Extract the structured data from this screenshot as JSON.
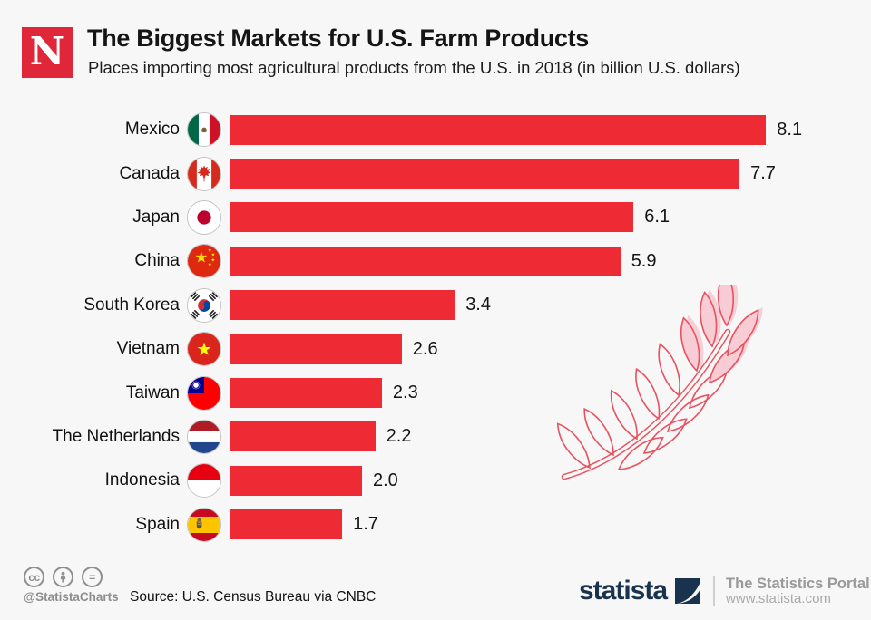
{
  "header": {
    "logo_letter": "N",
    "title": "The Biggest Markets for U.S. Farm Products",
    "subtitle": "Places importing most agricultural products from the U.S. in 2018 (in billion U.S. dollars)"
  },
  "chart_data": {
    "type": "bar",
    "orientation": "horizontal",
    "title": "The Biggest Markets for U.S. Farm Products",
    "xlabel": "billion U.S. dollars",
    "ylabel": "",
    "categories": [
      "Mexico",
      "Canada",
      "Japan",
      "China",
      "South Korea",
      "Vietnam",
      "Taiwan",
      "The Netherlands",
      "Indonesia",
      "Spain"
    ],
    "values": [
      8.1,
      7.7,
      6.1,
      5.9,
      3.4,
      2.6,
      2.3,
      2.2,
      2.0,
      1.7
    ],
    "flags": [
      "mexico",
      "canada",
      "japan",
      "china",
      "south-korea",
      "vietnam",
      "taiwan",
      "netherlands",
      "indonesia",
      "spain"
    ],
    "bar_color": "#ee2a35",
    "xlim": [
      0,
      8.8
    ],
    "grid": false,
    "value_labels": true,
    "legend": "none"
  },
  "footer": {
    "license": {
      "icons": [
        "cc-icon",
        "attribution-icon",
        "equals-icon"
      ],
      "cc_text": "cc",
      "equals_text": "=",
      "handle": "@StatistaCharts"
    },
    "source": "Source: U.S. Census Bureau via CNBC",
    "statista": {
      "wordmark": "statista",
      "tagline": "The Statistics Portal",
      "url": "www.statista.com"
    }
  },
  "colors": {
    "background": "#f7f7f7",
    "bar": "#ee2a35",
    "brand_red": "#e02639",
    "statista_navy": "#19324d",
    "wheat_stroke": "#e9515f",
    "wheat_fill": "#f8ccd4"
  }
}
